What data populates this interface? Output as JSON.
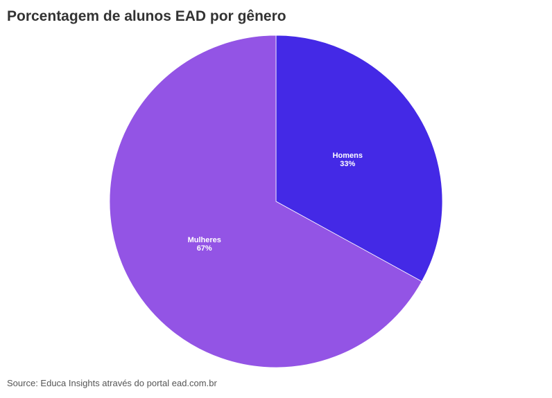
{
  "title": "Porcentagem de alunos EAD por gênero",
  "source": "Source: Educa Insights através do portal ead.com.br",
  "chart_data": {
    "type": "pie",
    "title": "Porcentagem de alunos EAD por gênero",
    "slices": [
      {
        "label": "Homens",
        "value": 33,
        "value_label": "33%",
        "color": "#4429E6"
      },
      {
        "label": "Mulheres",
        "value": 67,
        "value_label": "67%",
        "color": "#9354E5"
      }
    ],
    "start_angle_deg": 0,
    "direction": "clockwise",
    "legend": "none"
  }
}
